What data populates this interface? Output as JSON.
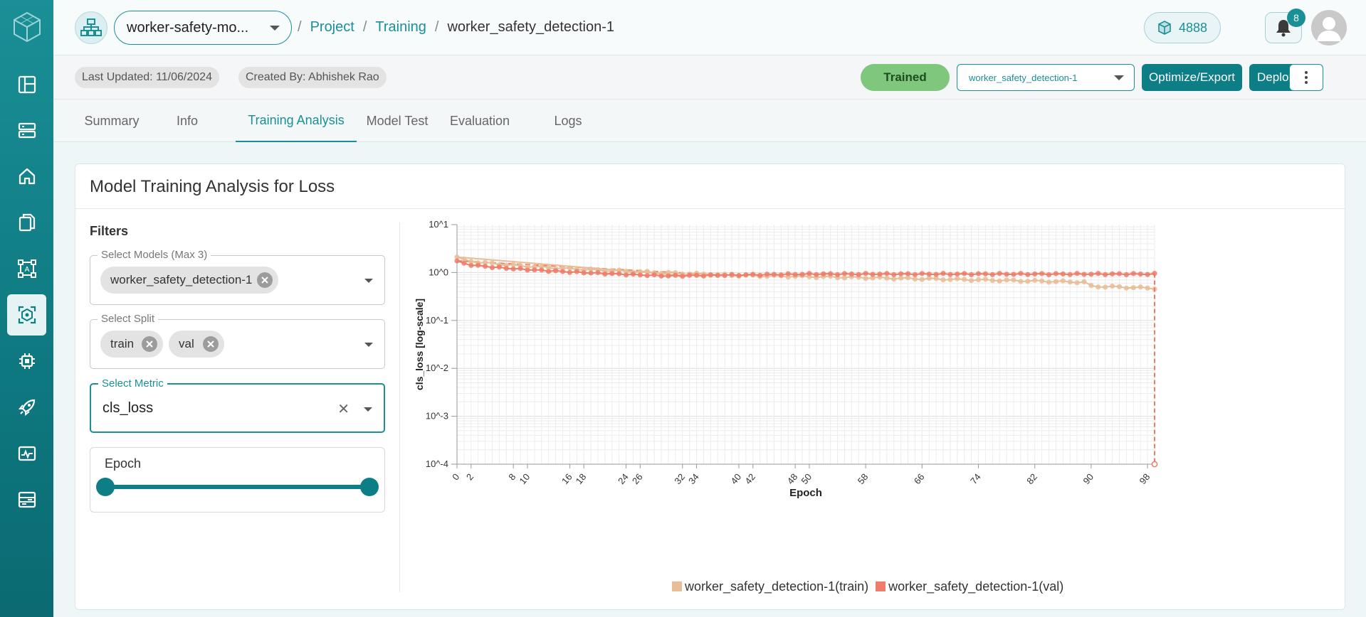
{
  "header": {
    "project_select": "worker-safety-mo...",
    "breadcrumb": [
      "Project",
      "Training",
      "worker_safety_detection-1"
    ],
    "credits": "4888",
    "notifications_count": "8"
  },
  "subbar": {
    "last_updated": "Last Updated: 11/06/2024",
    "created_by": "Created By: Abhishek Rao",
    "status": "Trained",
    "model_select": "worker_safety_detection-1",
    "optimize_label": "Optimize/Export",
    "deploy_label": "Deploy"
  },
  "tabs": [
    "Summary",
    "Info",
    "Training Analysis",
    "Model Test",
    "Evaluation",
    "Logs"
  ],
  "active_tab": "Training Analysis",
  "card": {
    "title": "Model Training Analysis for Loss",
    "filters_label": "Filters",
    "models_label": "Select Models (Max 3)",
    "models": [
      "worker_safety_detection-1"
    ],
    "split_label": "Select Split",
    "splits": [
      "train",
      "val"
    ],
    "metric_label": "Select Metric",
    "metric_value": "cls_loss",
    "epoch_label": "Epoch"
  },
  "colors": {
    "accent": "#1a8f96",
    "train": "#e8bd97",
    "val": "#ee7c68",
    "trained": "#7fc77d"
  },
  "chart_data": {
    "type": "line",
    "xlabel": "Epoch",
    "ylabel": "cls_loss [log-scale]",
    "y_scale": "log",
    "ylim": [
      0.0001,
      10
    ],
    "yticks": [
      "10^1",
      "10^0",
      "10^-1",
      "10^-2",
      "10^-3",
      "10^-4"
    ],
    "xlim": [
      0,
      99
    ],
    "xticks": [
      0,
      2,
      8,
      10,
      16,
      18,
      24,
      26,
      32,
      34,
      40,
      42,
      48,
      50,
      58,
      66,
      74,
      82,
      90,
      98
    ],
    "grid": true,
    "legend_position": "bottom",
    "series": [
      {
        "name": "worker_safety_detection-1(train)",
        "color": "#e8bd97",
        "start": 2.1,
        "at40": 0.87,
        "at89": 0.63,
        "at90": 0.52,
        "end": 0.47
      },
      {
        "name": "worker_safety_detection-1(val)",
        "color": "#ee7c68",
        "start": 1.75,
        "min": 0.85,
        "end": 0.93,
        "last_point": 0.0001
      }
    ]
  }
}
